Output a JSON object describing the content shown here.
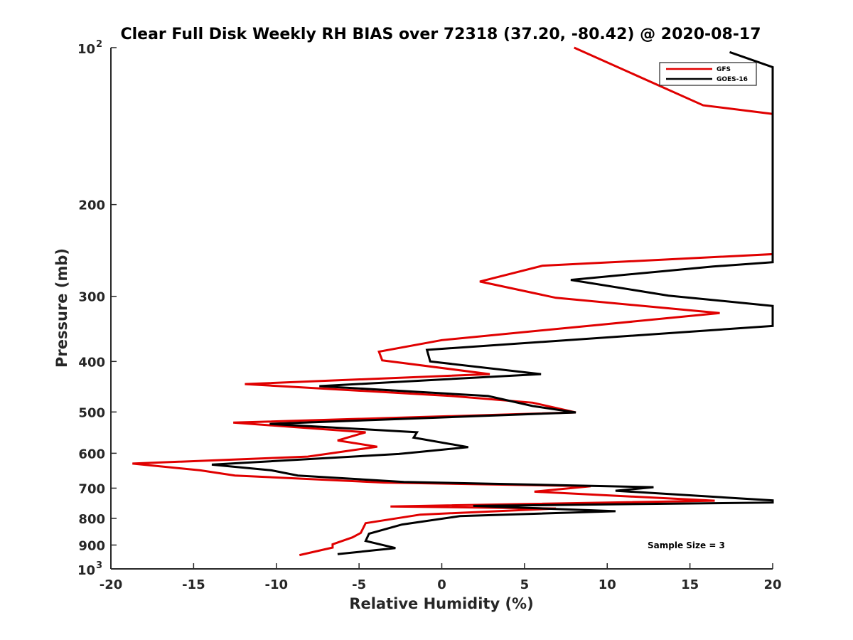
{
  "chart_data": {
    "type": "line",
    "title": "Clear Full Disk Weekly RH BIAS over 72318 (37.20, -80.42) @ 2020-08-17",
    "xlabel": "Relative Humidity (%)",
    "ylabel": "Pressure (mb)",
    "xlim": [
      -20,
      20
    ],
    "ylim": [
      100,
      1000
    ],
    "y_scale": "log",
    "y_reversed": true,
    "grid": false,
    "legend_position": "top-right",
    "x_ticks": [
      "-20",
      "-15",
      "-10",
      "-5",
      "0",
      "5",
      "10",
      "15",
      "20"
    ],
    "y_ticks": [
      {
        "value": 100,
        "base": "10",
        "exp": "2"
      },
      {
        "value": 200,
        "label": "200"
      },
      {
        "value": 300,
        "label": "300"
      },
      {
        "value": 400,
        "label": "400"
      },
      {
        "value": 500,
        "label": "500"
      },
      {
        "value": 600,
        "label": "600"
      },
      {
        "value": 700,
        "label": "700"
      },
      {
        "value": 800,
        "label": "800"
      },
      {
        "value": 900,
        "label": "900"
      },
      {
        "value": 1000,
        "base": "10",
        "exp": "3"
      }
    ],
    "series": [
      {
        "name": "GFS",
        "color": "#e00000",
        "points": [
          [
            8.0,
            100
          ],
          [
            15.8,
            129
          ],
          [
            20,
            134
          ],
          [
            20,
            249
          ],
          [
            6.1,
            262
          ],
          [
            2.3,
            281
          ],
          [
            6.9,
            302
          ],
          [
            16.8,
            323
          ],
          [
            9.6,
            340
          ],
          [
            0.0,
            364
          ],
          [
            -3.8,
            383
          ],
          [
            -3.6,
            398
          ],
          [
            2.9,
            423
          ],
          [
            -11.9,
            442
          ],
          [
            0.6,
            466
          ],
          [
            5.5,
            480
          ],
          [
            8.1,
            501
          ],
          [
            -12.6,
            524
          ],
          [
            -4.6,
            547
          ],
          [
            -6.3,
            567
          ],
          [
            -3.9,
            583
          ],
          [
            -8.1,
            609
          ],
          [
            -18.7,
            628
          ],
          [
            -14.6,
            647
          ],
          [
            -12.5,
            662
          ],
          [
            -3.5,
            683
          ],
          [
            9.0,
            694
          ],
          [
            5.6,
            711
          ],
          [
            16.5,
            740
          ],
          [
            -3.1,
            759
          ],
          [
            6.9,
            766
          ],
          [
            -1.3,
            787
          ],
          [
            -4.6,
            817
          ],
          [
            -4.9,
            853
          ],
          [
            -5.4,
            870
          ],
          [
            -6.6,
            897
          ],
          [
            -6.6,
            910
          ],
          [
            -8.6,
            941
          ]
        ]
      },
      {
        "name": "GOES-16",
        "color": "#000000",
        "points": [
          [
            17.4,
            102
          ],
          [
            20,
            109
          ],
          [
            20,
            258
          ],
          [
            16.4,
            263
          ],
          [
            7.8,
            279
          ],
          [
            13.7,
            299
          ],
          [
            20,
            313
          ],
          [
            20,
            342
          ],
          [
            -0.9,
            380
          ],
          [
            -0.7,
            400
          ],
          [
            6.0,
            423
          ],
          [
            -7.4,
            446
          ],
          [
            2.8,
            466
          ],
          [
            5.5,
            487
          ],
          [
            8.1,
            501
          ],
          [
            -10.4,
            527
          ],
          [
            -1.5,
            547
          ],
          [
            -1.7,
            560
          ],
          [
            1.6,
            584
          ],
          [
            -2.6,
            602
          ],
          [
            -13.9,
            631
          ],
          [
            -10.3,
            647
          ],
          [
            -8.7,
            662
          ],
          [
            -2.3,
            681
          ],
          [
            12.8,
            697
          ],
          [
            10.5,
            708
          ],
          [
            20,
            739
          ],
          [
            20,
            746
          ],
          [
            1.9,
            757
          ],
          [
            10.5,
            775
          ],
          [
            1.1,
            792
          ],
          [
            -2.4,
            822
          ],
          [
            -4.4,
            856
          ],
          [
            -4.6,
            884
          ],
          [
            -2.8,
            912
          ],
          [
            -6.3,
            937
          ]
        ]
      }
    ],
    "annotations": [
      "Sample Size = 3"
    ]
  }
}
